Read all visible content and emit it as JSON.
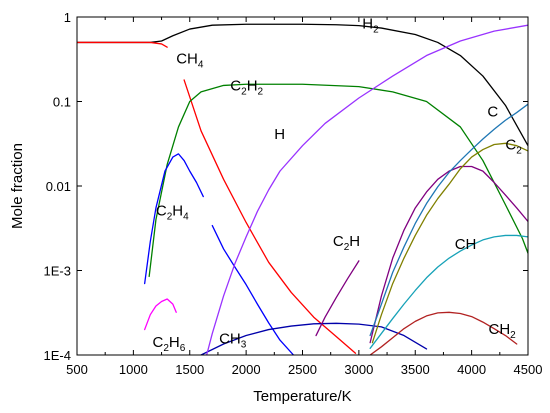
{
  "chart_data": {
    "type": "line",
    "xlabel": "Temperature/K",
    "ylabel": "Mole fraction",
    "xlim": [
      500,
      4500
    ],
    "ylim": [
      0.0001,
      1
    ],
    "yscale": "log",
    "x_ticks": [
      500,
      1000,
      1500,
      2000,
      2500,
      3000,
      3500,
      4000,
      4500
    ],
    "x_tick_labels": [
      "500",
      "1000",
      "1500",
      "2000",
      "2500",
      "3000",
      "3500",
      "4000",
      "4500"
    ],
    "y_ticks": [
      0.0001,
      0.001,
      0.01,
      0.1,
      1
    ],
    "y_tick_labels": [
      "1E-4",
      "1E-3",
      "0.01",
      "0.1",
      "1"
    ],
    "grid": false,
    "legend": "none",
    "series": [
      {
        "label": "H2",
        "label_main": "H",
        "label_sub": "2",
        "label_at": [
          3030,
          0.73
        ],
        "color": "#000000",
        "x": [
          500,
          1000,
          1150,
          1250,
          1350,
          1500,
          1700,
          2000,
          2500,
          2800,
          3000,
          3200,
          3500,
          3700,
          3900,
          4100,
          4300,
          4500
        ],
        "y": [
          0.5,
          0.5,
          0.5,
          0.52,
          0.6,
          0.72,
          0.8,
          0.82,
          0.82,
          0.81,
          0.79,
          0.74,
          0.62,
          0.5,
          0.35,
          0.2,
          0.09,
          0.03
        ]
      },
      {
        "label": "CH4",
        "label_main": "CH",
        "label_sub": "4",
        "label_at": [
          1380,
          0.28
        ],
        "color": "#ff0000",
        "x": [
          500,
          1000,
          1150,
          1250,
          1300
        ],
        "y": [
          0.5,
          0.5,
          0.5,
          0.48,
          0.44
        ]
      },
      {
        "label": "CH4",
        "label_main": "",
        "label_sub": "",
        "color": "#ff0000",
        "x": [
          1450,
          1600,
          1800,
          2000,
          2200,
          2400,
          2600,
          2800,
          2970
        ],
        "y": [
          0.18,
          0.045,
          0.012,
          0.0037,
          0.00125,
          0.00055,
          0.00028,
          0.000165,
          0.000105
        ]
      },
      {
        "label": "C2H2",
        "label_main": "C",
        "label_sub": "2",
        "label_main2": "H",
        "label_sub2": "2",
        "label_at": [
          1860,
          0.135
        ],
        "color": "#008000",
        "x": [
          1140,
          1200,
          1300,
          1400,
          1500,
          1600,
          1800,
          2000,
          2500,
          3000,
          3300,
          3600,
          3900,
          4100,
          4300,
          4450,
          4500
        ],
        "y": [
          0.00085,
          0.004,
          0.018,
          0.05,
          0.1,
          0.13,
          0.155,
          0.16,
          0.16,
          0.15,
          0.13,
          0.1,
          0.05,
          0.02,
          0.006,
          0.0024,
          0.0016
        ]
      },
      {
        "label": "C2H4",
        "label_main": "C",
        "label_sub": "2",
        "label_main2": "H",
        "label_sub2": "4",
        "label_at": [
          1200,
          0.0045
        ],
        "color": "#0000ff",
        "x": [
          1100,
          1150,
          1200,
          1280,
          1350,
          1400,
          1450,
          1500,
          1560,
          1620
        ],
        "y": [
          0.0007,
          0.0022,
          0.0055,
          0.015,
          0.022,
          0.024,
          0.02,
          0.015,
          0.011,
          0.0075
        ]
      },
      {
        "label": "C2H4",
        "label_main": "",
        "label_sub": "",
        "color": "#0000ff",
        "x": [
          1700,
          1800,
          1900,
          2000,
          2100,
          2200,
          2300,
          2420
        ],
        "y": [
          0.0034,
          0.0018,
          0.0011,
          0.00068,
          0.0004,
          0.00024,
          0.00015,
          0.0001
        ]
      },
      {
        "label": "C2H6",
        "label_main": "C",
        "label_sub": "2",
        "label_main2": "H",
        "label_sub2": "6",
        "label_at": [
          1170,
          0.000125
        ],
        "color": "#ff00ff",
        "x": [
          1100,
          1150,
          1200,
          1250,
          1300,
          1350,
          1380
        ],
        "y": [
          0.0002,
          0.0003,
          0.00038,
          0.00043,
          0.00046,
          0.0004,
          0.00032
        ]
      },
      {
        "label": "CH3",
        "label_main": "CH",
        "label_sub": "3",
        "label_at": [
          1760,
          0.000137
        ],
        "color": "#0000aa",
        "x": [
          1600,
          1800,
          2000,
          2200,
          2400,
          2600,
          2800,
          3000,
          3200,
          3400,
          3600
        ],
        "y": [
          0.0001,
          0.000135,
          0.00017,
          0.0002,
          0.00022,
          0.000234,
          0.000237,
          0.000232,
          0.000215,
          0.00017,
          0.000118
        ]
      },
      {
        "label": "H",
        "label_main": "H",
        "label_sub": "",
        "label_at": [
          2250,
          0.036
        ],
        "color": "#9933ff",
        "x": [
          1650,
          1700,
          1800,
          1900,
          2000,
          2100,
          2200,
          2300,
          2500,
          2700,
          3000,
          3300,
          3600,
          3900,
          4200,
          4500
        ],
        "y": [
          0.0001,
          0.00018,
          0.0005,
          0.0012,
          0.0025,
          0.005,
          0.009,
          0.015,
          0.03,
          0.055,
          0.11,
          0.2,
          0.35,
          0.52,
          0.68,
          0.8
        ]
      },
      {
        "label": "C2H",
        "label_main": "C",
        "label_sub": "2",
        "label_main2": "H",
        "label_sub2": "",
        "label_at": [
          2770,
          0.00195
        ],
        "color": "#800080",
        "x": [
          2620,
          2700,
          2800,
          2900,
          3000
        ],
        "y": [
          0.00017,
          0.00028,
          0.00048,
          0.0008,
          0.0013
        ]
      },
      {
        "label": "C2H",
        "label_main": "",
        "label_sub": "",
        "color": "#800080",
        "x": [
          3100,
          3200,
          3300,
          3400,
          3500,
          3600,
          3700,
          3800,
          3900,
          4000,
          4100,
          4200,
          4300,
          4400,
          4500
        ],
        "y": [
          0.00014,
          0.0005,
          0.0014,
          0.003,
          0.0055,
          0.0085,
          0.012,
          0.015,
          0.017,
          0.017,
          0.015,
          0.011,
          0.0078,
          0.0055,
          0.0038
        ]
      },
      {
        "label": "C",
        "label_main": "C",
        "label_sub": "",
        "label_at": [
          4140,
          0.066
        ],
        "color": "#1f77b4",
        "x": [
          3100,
          3200,
          3300,
          3400,
          3500,
          3600,
          3700,
          3800,
          3900,
          4000,
          4100,
          4200,
          4300,
          4400,
          4500
        ],
        "y": [
          0.00017,
          0.0004,
          0.00095,
          0.0019,
          0.0036,
          0.0062,
          0.0098,
          0.0145,
          0.02,
          0.027,
          0.036,
          0.047,
          0.06,
          0.074,
          0.093
        ]
      },
      {
        "label": "C2",
        "label_main": "C",
        "label_sub": "2",
        "label_at": [
          4300,
          0.027
        ],
        "color": "#808000",
        "x": [
          3120,
          3200,
          3300,
          3400,
          3500,
          3600,
          3700,
          3800,
          3900,
          4000,
          4100,
          4200,
          4300,
          4400,
          4500
        ],
        "y": [
          0.00014,
          0.0003,
          0.0007,
          0.0014,
          0.0026,
          0.0045,
          0.0071,
          0.0105,
          0.016,
          0.022,
          0.027,
          0.031,
          0.032,
          0.03,
          0.026
        ]
      },
      {
        "label": "CH",
        "label_main": "CH",
        "label_sub": "",
        "label_at": [
          3850,
          0.0018
        ],
        "color": "#17a2b8",
        "x": [
          3100,
          3200,
          3300,
          3400,
          3500,
          3600,
          3700,
          3800,
          3900,
          4000,
          4100,
          4200,
          4300,
          4400,
          4500
        ],
        "y": [
          0.00012,
          0.00018,
          0.00027,
          0.0004,
          0.00058,
          0.00082,
          0.0011,
          0.0014,
          0.0017,
          0.002,
          0.0023,
          0.0025,
          0.0026,
          0.0026,
          0.0025
        ]
      },
      {
        "label": "CH2",
        "label_main": "CH",
        "label_sub": "2",
        "label_at": [
          4150,
          0.000178
        ],
        "color": "#b22222",
        "x": [
          3100,
          3200,
          3300,
          3400,
          3500,
          3600,
          3700,
          3800,
          3900,
          4000,
          4100,
          4200,
          4300,
          4400
        ],
        "y": [
          0.0001,
          0.000125,
          0.00016,
          0.000205,
          0.00025,
          0.00029,
          0.000315,
          0.00032,
          0.00031,
          0.000285,
          0.000245,
          0.000205,
          0.00017,
          0.000135
        ]
      }
    ]
  }
}
